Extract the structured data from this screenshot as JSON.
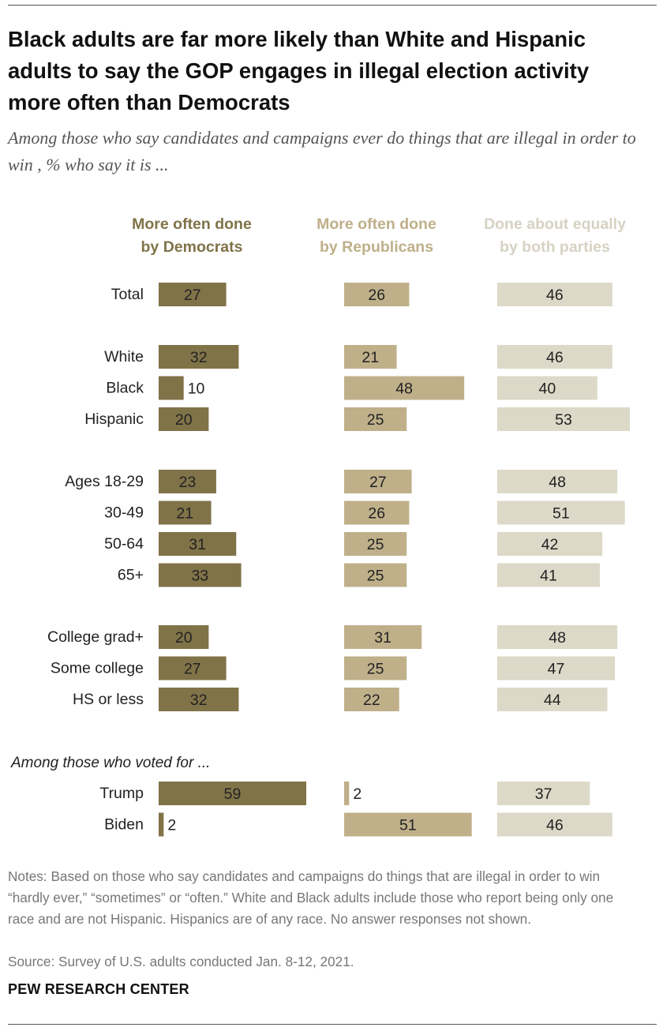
{
  "title": "Black adults are far more likely than White and Hispanic adults to say the GOP engages in illegal election activity more often than Democrats",
  "subtitle": "Among those who say candidates and campaigns ever do things that are illegal in order to win , % who say it is ...",
  "colors": {
    "democrats": "#807348",
    "republicans": "#bfb08a",
    "both": "#ddd9c8"
  },
  "chart_data": {
    "type": "bar",
    "layout": "grouped horizontal bars, three panels",
    "columns": [
      {
        "key": "dem",
        "line1": "More often done",
        "line2": "by Democrats"
      },
      {
        "key": "rep",
        "line1": "More often done",
        "line2": "by Republicans"
      },
      {
        "key": "both",
        "line1": "Done about equally",
        "line2": "by both parties"
      }
    ],
    "groups": [
      {
        "header": "",
        "rows": [
          {
            "label": "Total",
            "values": [
              27,
              26,
              46
            ]
          }
        ]
      },
      {
        "header": "",
        "rows": [
          {
            "label": "White",
            "values": [
              32,
              21,
              46
            ]
          },
          {
            "label": "Black",
            "values": [
              10,
              48,
              40
            ]
          },
          {
            "label": "Hispanic",
            "values": [
              20,
              25,
              53
            ]
          }
        ]
      },
      {
        "header": "",
        "rows": [
          {
            "label": "Ages 18-29",
            "values": [
              23,
              27,
              48
            ]
          },
          {
            "label": "30-49",
            "values": [
              21,
              26,
              51
            ]
          },
          {
            "label": "50-64",
            "values": [
              31,
              25,
              42
            ]
          },
          {
            "label": "65+",
            "values": [
              33,
              25,
              41
            ]
          }
        ]
      },
      {
        "header": "",
        "rows": [
          {
            "label": "College grad+",
            "values": [
              20,
              31,
              48
            ]
          },
          {
            "label": "Some college",
            "values": [
              27,
              25,
              47
            ]
          },
          {
            "label": "HS or less",
            "values": [
              32,
              22,
              44
            ]
          }
        ]
      },
      {
        "header": "Among those who voted for ...",
        "rows": [
          {
            "label": "Trump",
            "values": [
              59,
              2,
              37
            ]
          },
          {
            "label": "Biden",
            "values": [
              2,
              51,
              46
            ]
          }
        ]
      }
    ]
  },
  "notes": "Notes: Based on those who say candidates and campaigns do things that are illegal in order to win “hardly ever,” “sometimes” or “often.”  White and Black adults include those who report being only one race and are not Hispanic. Hispanics are of any race. No answer responses not shown.",
  "source": "Source: Survey of U.S. adults conducted Jan. 8-12, 2021.",
  "brand": "PEW RESEARCH CENTER"
}
